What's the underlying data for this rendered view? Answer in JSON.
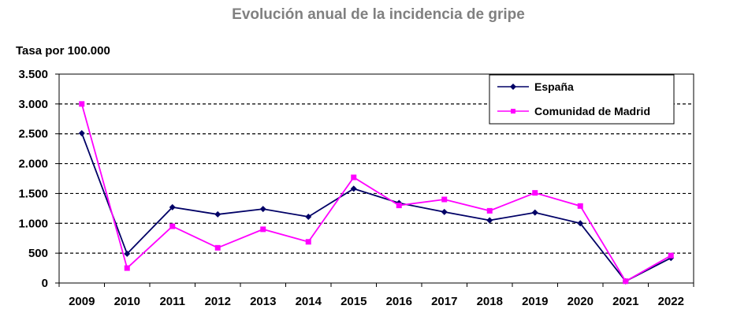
{
  "chart_data": {
    "type": "line",
    "title": "Evolución anual de la incidencia de gripe",
    "ylabel": "Tasa por 100.000",
    "xlabel": "",
    "categories": [
      "2009",
      "2010",
      "2011",
      "2012",
      "2013",
      "2014",
      "2015",
      "2016",
      "2017",
      "2018",
      "2019",
      "2020",
      "2021",
      "2022"
    ],
    "ylim": [
      0,
      3500
    ],
    "yticks": [
      0,
      500,
      1000,
      1500,
      2000,
      2500,
      3000,
      3500
    ],
    "ytick_labels": [
      "0",
      "500",
      "1.000",
      "1.500",
      "2.000",
      "2.500",
      "3.000",
      "3.500"
    ],
    "grid": "horizontal dashed",
    "legend_position": "top-right",
    "series": [
      {
        "name": "España",
        "color": "#000066",
        "marker": "diamond",
        "values": [
          2510,
          490,
          1270,
          1150,
          1240,
          1110,
          1580,
          1340,
          1190,
          1050,
          1180,
          1000,
          30,
          420
        ]
      },
      {
        "name": "Comunidad de Madrid",
        "color": "#ff00ff",
        "marker": "square",
        "values": [
          3000,
          250,
          950,
          590,
          900,
          690,
          1770,
          1300,
          1400,
          1210,
          1510,
          1290,
          30,
          460
        ]
      }
    ]
  }
}
